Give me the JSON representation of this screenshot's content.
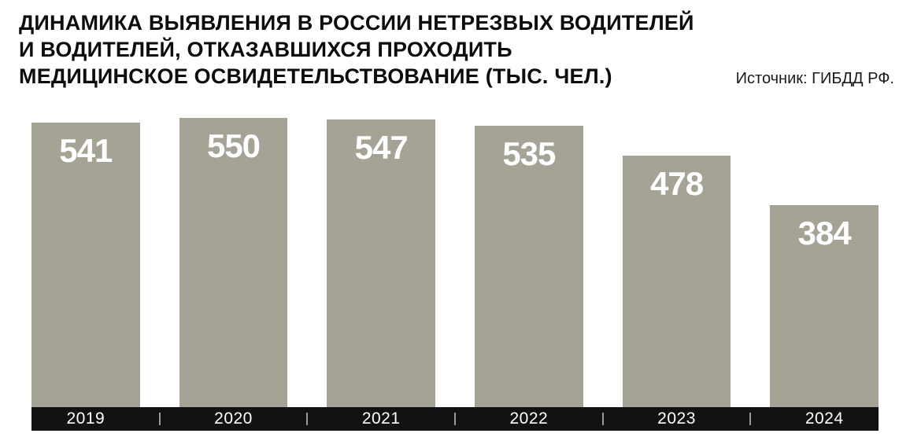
{
  "header": {
    "title": "ДИНАМИКА ВЫЯВЛЕНИЯ В РОССИИ НЕТРЕЗВЫХ ВОДИТЕЛЕЙ\nИ ВОДИТЕЛЕЙ, ОТКАЗАВШИХСЯ ПРОХОДИТЬ\nМЕДИЦИНСКОЕ ОСВИДЕТЕЛЬСТВОВАНИЕ (ТЫС. ЧЕЛ.)",
    "source": "Источник: ГИБДД РФ."
  },
  "chart_data": {
    "type": "bar",
    "title": "ДИНАМИКА ВЫЯВЛЕНИЯ В РОССИИ НЕТРЕЗВЫХ ВОДИТЕЛЕЙ И ВОДИТЕЛЕЙ, ОТКАЗАВШИХСЯ ПРОХОДИТЬ МЕДИЦИНСКОЕ ОСВИДЕТЕЛЬСТВОВАНИЕ (ТЫС. ЧЕЛ.)",
    "source": "Источник: ГИБДД РФ.",
    "categories": [
      "2019",
      "2020",
      "2021",
      "2022",
      "2023",
      "2024"
    ],
    "values": [
      541,
      550,
      547,
      535,
      478,
      384
    ],
    "xlabel": "",
    "ylabel": "",
    "ylim": [
      0,
      550
    ],
    "grid": false,
    "legend": "none",
    "value_labels_position": "inside-top",
    "colors": {
      "bar": "#a5a396",
      "value_label": "#ffffff",
      "axis_bar": "#121212",
      "axis_text": "#ffffff",
      "divider": "#9a9a9a",
      "title": "#0d0d0d",
      "background": "#ffffff"
    }
  }
}
